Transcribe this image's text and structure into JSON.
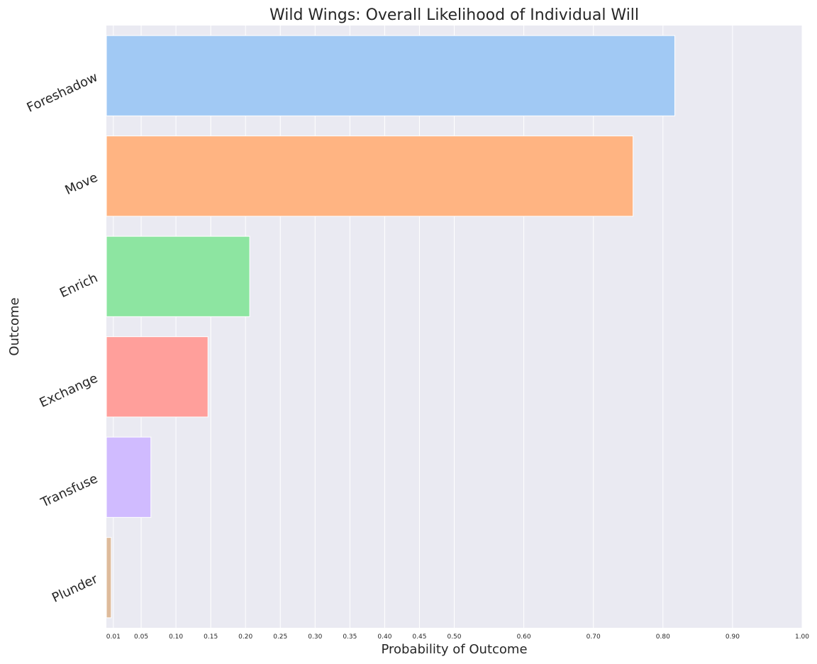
{
  "chart_data": {
    "type": "bar",
    "orientation": "horizontal",
    "title": "Wild Wings: Overall Likelihood of Individual Will",
    "xlabel": "Probability of Outcome",
    "ylabel": "Outcome",
    "categories": [
      "Foreshadow",
      "Move",
      "Enrich",
      "Exchange",
      "Transfuse",
      "Plunder"
    ],
    "values": [
      0.817,
      0.757,
      0.206,
      0.146,
      0.064,
      0.007
    ],
    "colors": [
      "#a1c9f4",
      "#ffb482",
      "#8de5a1",
      "#ff9f9b",
      "#d0bbff",
      "#debb9b"
    ],
    "xlim": [
      0,
      1.0
    ],
    "xticks": [
      0.01,
      0.05,
      0.1,
      0.15,
      0.2,
      0.25,
      0.3,
      0.35,
      0.4,
      0.45,
      0.5,
      0.6,
      0.7,
      0.8,
      0.9,
      1.0
    ],
    "xtick_labels": [
      "0.01",
      "0.05",
      "0.10",
      "0.15",
      "0.20",
      "0.25",
      "0.30",
      "0.35",
      "0.40",
      "0.45",
      "0.50",
      "0.60",
      "0.70",
      "0.80",
      "0.90",
      "1.00"
    ],
    "grid": true,
    "background": "#eaeaf2"
  }
}
